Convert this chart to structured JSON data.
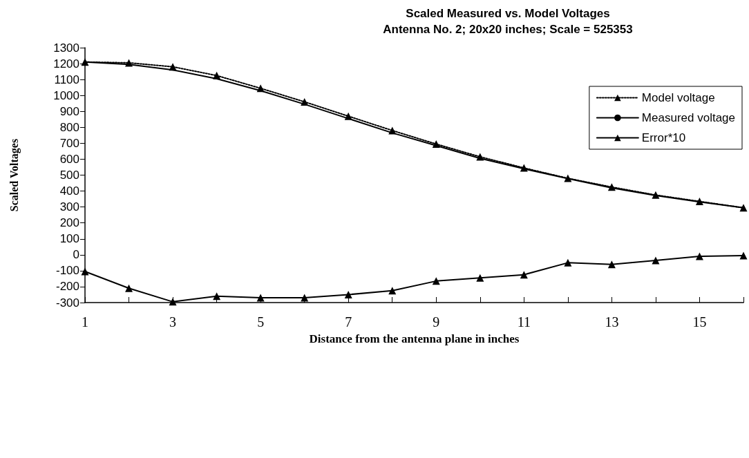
{
  "chart_data": {
    "type": "line",
    "title": "Scaled Measured vs. Model Voltages",
    "subtitle": "Antenna No. 2; 20x20 inches; Scale = 525353",
    "xlabel": "Distance from the antenna plane in inches",
    "ylabel": "Scaled Voltages",
    "x": [
      1,
      2,
      3,
      4,
      5,
      6,
      7,
      8,
      9,
      10,
      11,
      12,
      13,
      14,
      15,
      16
    ],
    "series": [
      {
        "name": "Model voltage",
        "color": "#000000",
        "marker": "triangle",
        "line_style": "dotted",
        "values": [
          1210,
          1205,
          1180,
          1125,
          1045,
          960,
          870,
          780,
          695,
          615,
          545,
          480,
          425,
          375,
          335,
          295
        ]
      },
      {
        "name": "Measured voltage",
        "color": "#000000",
        "marker": "none",
        "line_style": "solid",
        "values": [
          1210,
          1195,
          1160,
          1105,
          1030,
          945,
          855,
          765,
          685,
          605,
          540,
          478,
          420,
          372,
          332,
          295
        ]
      },
      {
        "name": "Error*10",
        "color": "#000000",
        "marker": "triangle",
        "line_style": "solid",
        "values": [
          -105,
          -210,
          -295,
          -260,
          -270,
          -270,
          -250,
          -225,
          -165,
          -145,
          -125,
          -50,
          -60,
          -35,
          -10,
          -5
        ]
      }
    ],
    "xlim": [
      1,
      16
    ],
    "xticks": [
      1,
      {
        "value": 2,
        "label": null
      },
      3,
      {
        "value": 4,
        "label": null
      },
      5,
      {
        "value": 6,
        "label": null
      },
      7,
      {
        "value": 8,
        "label": null
      },
      9,
      {
        "value": 10,
        "label": null
      },
      11,
      {
        "value": 12,
        "label": null
      },
      13,
      {
        "value": 14,
        "label": null
      },
      15,
      {
        "value": 16,
        "label": null
      }
    ],
    "ylim": [
      -300,
      1300
    ],
    "yticks": [
      -300,
      -200,
      -100,
      0,
      100,
      200,
      300,
      400,
      500,
      600,
      700,
      800,
      900,
      1000,
      1100,
      1200,
      1300
    ],
    "grid": false,
    "legend": "top right"
  }
}
